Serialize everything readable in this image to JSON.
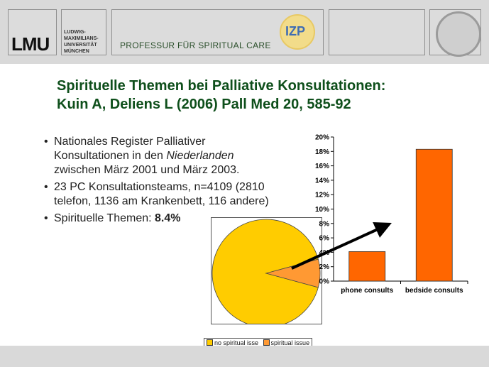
{
  "header": {
    "logo_text": "LMU",
    "university_lines": [
      "LUDWIG-",
      "MAXIMILIANS-",
      "UNIVERSITÄT",
      "MÜNCHEN"
    ],
    "professorship": "PROFESSUR FÜR SPIRITUAL  CARE",
    "badge_text": "IZP"
  },
  "slide": {
    "title_line1": "Spirituelle Themen bei Palliative Konsultationen:",
    "title_line2": "Kuin A, Deliens L (2006) Pall Med 20, 585-92",
    "bullet1_a": "Nationales Register Palliativer Konsultationen in den ",
    "bullet1_em": "Niederlanden",
    "bullet1_b": " zwischen März 2001 und März 2003.",
    "bullet2": "23 PC Konsultationsteams, n=4109 (2810 telefon, 1136 am Krankenbett, 116 andere)",
    "bullet3_a": "Spirituelle Themen: ",
    "bullet3_b": "8.4%"
  },
  "colors": {
    "title": "#0e4f1b",
    "bar_fill": "#ff6600",
    "pie_main": "#ffcc00",
    "pie_slice": "#ff9933",
    "header_gray": "#d9d9d9"
  },
  "chart_data": [
    {
      "type": "pie",
      "labels": [
        "no spiritual isse",
        "spiritual issue"
      ],
      "values": [
        91.6,
        8.4
      ],
      "legend_placement": "bottom"
    },
    {
      "type": "bar",
      "categories": [
        "phone consults",
        "bedside consults"
      ],
      "values": [
        4.1,
        18.3
      ],
      "ylim": [
        0,
        20
      ],
      "yticks": [
        "0%",
        "2%",
        "4%",
        "6%",
        "8%",
        "10%",
        "12%",
        "14%",
        "16%",
        "18%",
        "20%"
      ],
      "grid": false
    }
  ]
}
